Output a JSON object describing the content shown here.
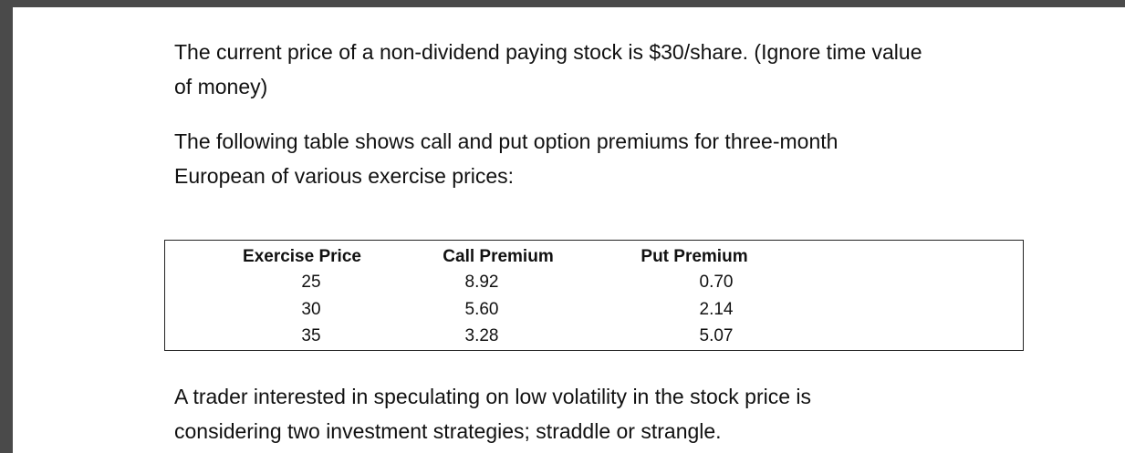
{
  "paragraphs": {
    "p1": [
      "The current price of a non-dividend paying stock is $30/share.  (Ignore time value",
      "of money)"
    ],
    "p2": [
      "The following table shows call and put option premiums for three-month",
      "European of various exercise prices:"
    ],
    "p3": [
      "A trader interested in speculating on low volatility in the stock price is",
      "considering two investment strategies; straddle or strangle."
    ]
  },
  "table": {
    "headers": [
      "Exercise Price",
      "Call Premium",
      "Put Premium"
    ],
    "rows": [
      [
        "25",
        "8.92",
        "0.70"
      ],
      [
        "30",
        "5.60",
        "2.14"
      ],
      [
        "35",
        "3.28",
        "5.07"
      ]
    ]
  }
}
